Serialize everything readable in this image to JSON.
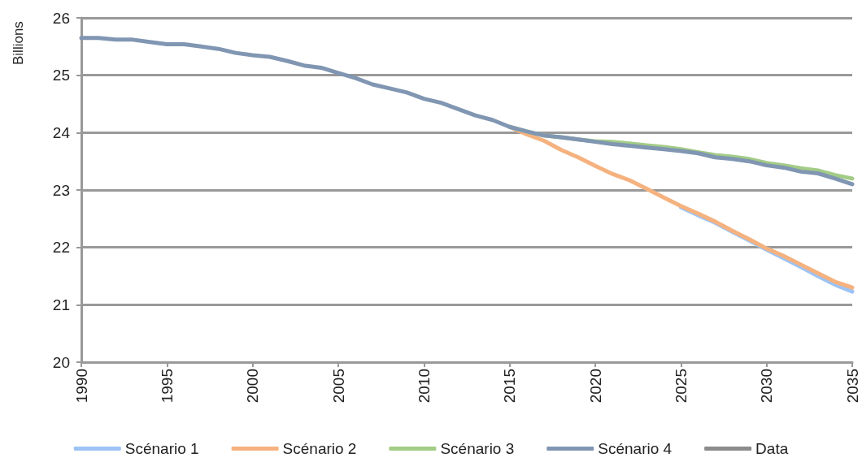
{
  "chart_data": {
    "type": "line",
    "ylabel": "Billions",
    "x": [
      1990,
      1991,
      1992,
      1993,
      1994,
      1995,
      1996,
      1997,
      1998,
      1999,
      2000,
      2001,
      2002,
      2003,
      2004,
      2005,
      2006,
      2007,
      2008,
      2009,
      2010,
      2011,
      2012,
      2013,
      2014,
      2015,
      2016,
      2017,
      2018,
      2019,
      2020,
      2021,
      2022,
      2023,
      2024,
      2025,
      2026,
      2027,
      2028,
      2029,
      2030,
      2031,
      2032,
      2033,
      2034,
      2035
    ],
    "series": [
      {
        "name": "Scénario 1",
        "color": "#9dc3f5",
        "values": [
          null,
          null,
          null,
          null,
          null,
          null,
          null,
          null,
          null,
          null,
          null,
          null,
          null,
          null,
          null,
          null,
          null,
          null,
          null,
          null,
          null,
          null,
          null,
          null,
          null,
          null,
          null,
          null,
          null,
          null,
          null,
          null,
          null,
          null,
          null,
          22.7,
          22.56,
          22.43,
          22.27,
          22.12,
          21.96,
          21.81,
          21.66,
          21.5,
          21.35,
          21.23
        ]
      },
      {
        "name": "Scénario 2",
        "color": "#f5b27f",
        "values": [
          null,
          null,
          null,
          null,
          null,
          null,
          null,
          null,
          null,
          null,
          null,
          null,
          null,
          null,
          null,
          null,
          null,
          null,
          null,
          null,
          null,
          null,
          null,
          null,
          null,
          24.1,
          23.97,
          23.86,
          23.7,
          23.57,
          23.42,
          23.28,
          23.17,
          23.02,
          22.87,
          22.72,
          22.59,
          22.45,
          22.29,
          22.14,
          21.98,
          21.85,
          21.7,
          21.55,
          21.4,
          21.3
        ]
      },
      {
        "name": "Scénario 3",
        "color": "#a3cc86",
        "values": [
          null,
          null,
          null,
          null,
          null,
          null,
          null,
          null,
          null,
          null,
          null,
          null,
          null,
          null,
          null,
          null,
          null,
          null,
          null,
          null,
          null,
          null,
          null,
          null,
          null,
          24.1,
          24.02,
          23.95,
          23.92,
          23.88,
          23.85,
          23.84,
          23.81,
          23.78,
          23.75,
          23.71,
          23.66,
          23.61,
          23.58,
          23.54,
          23.47,
          23.43,
          23.38,
          23.34,
          23.26,
          23.2
        ]
      },
      {
        "name": "Scénario 4",
        "color": "#8096b2",
        "values": [
          25.65,
          25.65,
          25.62,
          25.62,
          25.58,
          25.54,
          25.54,
          25.5,
          25.46,
          25.39,
          25.35,
          25.32,
          25.25,
          25.17,
          25.13,
          25.04,
          24.95,
          24.84,
          24.77,
          24.7,
          24.59,
          24.52,
          24.41,
          24.3,
          24.22,
          24.1,
          24.02,
          23.95,
          23.92,
          23.88,
          23.84,
          23.8,
          23.77,
          23.74,
          23.71,
          23.68,
          23.64,
          23.57,
          23.54,
          23.5,
          23.43,
          23.39,
          23.32,
          23.29,
          23.2,
          23.1
        ]
      },
      {
        "name": "Data",
        "color": "#8c8c8c",
        "values": [
          null,
          null,
          null,
          null,
          null,
          null,
          null,
          null,
          null,
          null,
          null,
          null,
          null,
          null,
          null,
          null,
          null,
          null,
          null,
          null,
          null,
          null,
          null,
          null,
          null,
          null,
          null,
          null,
          null,
          null,
          null,
          null,
          null,
          null,
          null,
          null,
          null,
          null,
          null,
          null,
          null,
          null,
          null,
          null,
          null,
          null
        ]
      }
    ],
    "xlim": [
      1990,
      2035
    ],
    "xticks": [
      1990,
      1995,
      2000,
      2005,
      2010,
      2015,
      2020,
      2025,
      2030,
      2035
    ],
    "ylim": [
      20,
      26
    ],
    "yticks": [
      20,
      21,
      22,
      23,
      24,
      25,
      26
    ],
    "grid": "y",
    "legend": "bottom",
    "marker": "none",
    "line_style": "solid"
  }
}
